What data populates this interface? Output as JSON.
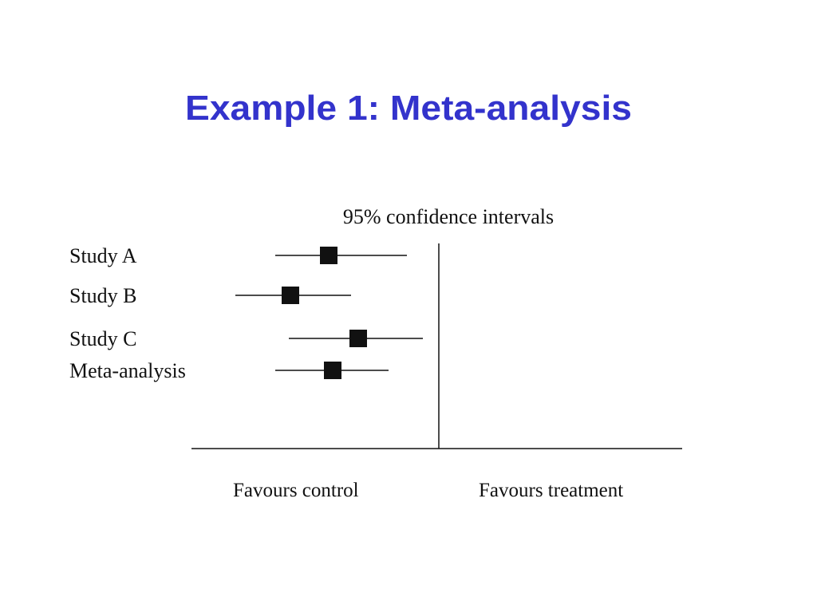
{
  "chart_data": {
    "type": "forest",
    "title": "Example 1: Meta-analysis",
    "subtitle": "95% confidence intervals",
    "categories": [
      "Study A",
      "Study B",
      "Study C",
      "Meta-analysis"
    ],
    "values": [
      -1.38,
      -1.86,
      -1.01,
      -1.33
    ],
    "lower": [
      -2.05,
      -2.55,
      -1.88,
      -2.05
    ],
    "upper": [
      -0.4,
      -1.1,
      -0.2,
      -0.63
    ],
    "xlim": [
      -3.1,
      3.05
    ],
    "null_line": 0,
    "x_label_left": "Favours control",
    "x_label_right": "Favours treatment",
    "color": "#111111"
  }
}
